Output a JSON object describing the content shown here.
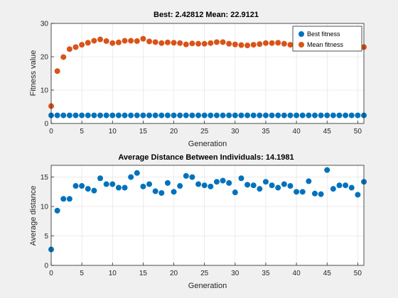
{
  "chart_data": [
    {
      "type": "scatter",
      "title": "Best: 2.42812 Mean: 22.9121",
      "xlabel": "Generation",
      "ylabel": "Fitness value",
      "xlim": [
        0,
        51
      ],
      "ylim": [
        0,
        30
      ],
      "xticks": [
        0,
        5,
        10,
        15,
        20,
        25,
        30,
        35,
        40,
        45,
        50
      ],
      "yticks": [
        0,
        10,
        20,
        30
      ],
      "grid": true,
      "legend": "top-right",
      "x": [
        0,
        1,
        2,
        3,
        4,
        5,
        6,
        7,
        8,
        9,
        10,
        11,
        12,
        13,
        14,
        15,
        16,
        17,
        18,
        19,
        20,
        21,
        22,
        23,
        24,
        25,
        26,
        27,
        28,
        29,
        30,
        31,
        32,
        33,
        34,
        35,
        36,
        37,
        38,
        39,
        40,
        41,
        42,
        43,
        44,
        45,
        46,
        47,
        48,
        49,
        50,
        51
      ],
      "series": [
        {
          "name": "Best fitness",
          "color": "#0072BD",
          "values": [
            2.43,
            2.43,
            2.43,
            2.43,
            2.43,
            2.43,
            2.43,
            2.43,
            2.43,
            2.43,
            2.43,
            2.43,
            2.43,
            2.43,
            2.43,
            2.43,
            2.43,
            2.43,
            2.43,
            2.43,
            2.43,
            2.43,
            2.43,
            2.43,
            2.43,
            2.43,
            2.43,
            2.43,
            2.43,
            2.43,
            2.43,
            2.43,
            2.43,
            2.43,
            2.43,
            2.43,
            2.43,
            2.43,
            2.43,
            2.43,
            2.43,
            2.43,
            2.43,
            2.43,
            2.43,
            2.43,
            2.43,
            2.43,
            2.43,
            2.43,
            2.43,
            2.43
          ]
        },
        {
          "name": "Mean fitness",
          "color": "#D95319",
          "values": [
            5.2,
            15.7,
            19.9,
            22.3,
            22.9,
            23.6,
            24.2,
            24.8,
            25.2,
            24.7,
            24.1,
            24.3,
            24.8,
            24.8,
            24.7,
            25.4,
            24.6,
            24.4,
            24.1,
            24.3,
            24.2,
            24.1,
            23.7,
            24.0,
            23.9,
            23.9,
            24.1,
            24.4,
            24.4,
            23.9,
            23.7,
            23.5,
            23.4,
            23.6,
            23.8,
            24.1,
            24.1,
            24.2,
            23.9,
            23.6,
            23.7,
            23.8,
            23.5,
            23.9,
            24.1,
            23.6,
            23.7,
            23.8,
            23.6,
            23.9,
            23.8,
            22.9
          ]
        }
      ],
      "legend_entries": [
        "Best fitness",
        "Mean fitness"
      ]
    },
    {
      "type": "scatter",
      "title": "Average Distance Between Individuals: 14.1981",
      "xlabel": "Generation",
      "ylabel": "Average distance",
      "xlim": [
        0,
        51
      ],
      "ylim": [
        0,
        17
      ],
      "xticks": [
        0,
        5,
        10,
        15,
        20,
        25,
        30,
        35,
        40,
        45,
        50
      ],
      "yticks": [
        0,
        5,
        10,
        15
      ],
      "grid": true,
      "x": [
        0,
        1,
        2,
        3,
        4,
        5,
        6,
        7,
        8,
        9,
        10,
        11,
        12,
        13,
        14,
        15,
        16,
        17,
        18,
        19,
        20,
        21,
        22,
        23,
        24,
        25,
        26,
        27,
        28,
        29,
        30,
        31,
        32,
        33,
        34,
        35,
        36,
        37,
        38,
        39,
        40,
        41,
        42,
        43,
        44,
        45,
        46,
        47,
        48,
        49,
        50,
        51
      ],
      "series": [
        {
          "color": "#0072BD",
          "values": [
            2.7,
            9.3,
            11.3,
            11.3,
            13.5,
            13.5,
            13.0,
            12.7,
            14.8,
            13.8,
            13.8,
            13.2,
            13.2,
            15.0,
            15.7,
            13.4,
            13.8,
            12.6,
            12.3,
            14.0,
            12.5,
            13.5,
            15.2,
            15.0,
            13.8,
            13.6,
            13.4,
            14.2,
            14.4,
            14.0,
            12.4,
            14.8,
            13.7,
            13.6,
            13.0,
            14.2,
            13.6,
            13.2,
            13.8,
            13.5,
            12.5,
            12.5,
            14.3,
            12.2,
            12.1,
            16.2,
            13.0,
            13.6,
            13.6,
            13.2,
            12.0,
            14.2
          ]
        }
      ]
    }
  ]
}
